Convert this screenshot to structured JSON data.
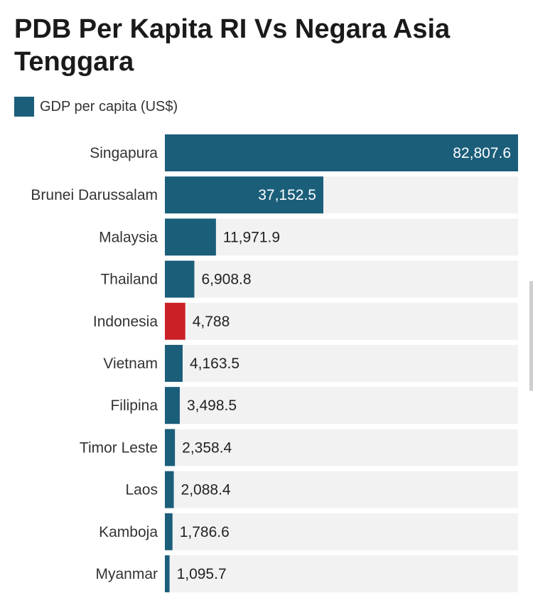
{
  "chart_data": {
    "type": "bar",
    "orientation": "horizontal",
    "title": "PDB Per Kapita RI Vs Negara Asia Tenggara",
    "legend": {
      "label": "GDP per capita (US$)",
      "placement": "top-left"
    },
    "categories": [
      "Singapura",
      "Brunei Darussalam",
      "Malaysia",
      "Thailand",
      "Indonesia",
      "Vietnam",
      "Filipina",
      "Timor Leste",
      "Laos",
      "Kamboja",
      "Myanmar"
    ],
    "values": [
      82807.6,
      37152.5,
      11971.9,
      6908.8,
      4788,
      4163.5,
      3498.5,
      2358.4,
      2088.4,
      1786.6,
      1095.7
    ],
    "value_labels": [
      "82,807.6",
      "37,152.5",
      "11,971.9",
      "6,908.8",
      "4,788",
      "4,163.5",
      "3,498.5",
      "2,358.4",
      "2,088.4",
      "1,786.6",
      "1,095.7"
    ],
    "highlight": "Indonesia",
    "xlim": [
      0,
      82807.6
    ],
    "colors": {
      "bar": "#1b5e7a",
      "highlight": "#cc2027",
      "track": "#f2f2f2",
      "inside_label": "#ffffff",
      "outside_label": "#222222"
    }
  }
}
